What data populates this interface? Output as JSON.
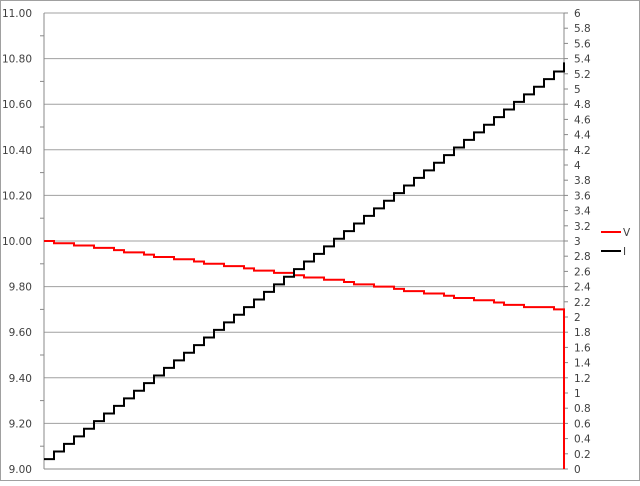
{
  "chart_data": {
    "type": "line",
    "title": "",
    "xlabel": "",
    "ylabel": "",
    "y2label": "",
    "grid": true,
    "legend_position": "right",
    "x": [
      0,
      1,
      2,
      3,
      4,
      5,
      6,
      7,
      8,
      9,
      10,
      11,
      12,
      13,
      14,
      15,
      16,
      17,
      18,
      19,
      20,
      21,
      22,
      23,
      24,
      25,
      26,
      27,
      28,
      29,
      30,
      31,
      32,
      33,
      34,
      35,
      36,
      37,
      38,
      39,
      40,
      41,
      42,
      43,
      44,
      45,
      46,
      47,
      48,
      49,
      50,
      51,
      52
    ],
    "y_left": {
      "min": 9.0,
      "max": 11.0,
      "step": 0.2,
      "decimals": 2
    },
    "y_right": {
      "min": 0,
      "max": 6,
      "step": 0.2
    },
    "series": [
      {
        "name": "V",
        "axis": "left",
        "color": "#ff0000",
        "values": [
          10.0,
          9.99,
          9.99,
          9.98,
          9.98,
          9.97,
          9.97,
          9.96,
          9.95,
          9.95,
          9.94,
          9.93,
          9.93,
          9.92,
          9.92,
          9.91,
          9.9,
          9.9,
          9.89,
          9.89,
          9.88,
          9.87,
          9.87,
          9.86,
          9.86,
          9.85,
          9.84,
          9.84,
          9.83,
          9.83,
          9.82,
          9.81,
          9.81,
          9.8,
          9.8,
          9.79,
          9.78,
          9.78,
          9.77,
          9.77,
          9.76,
          9.75,
          9.75,
          9.74,
          9.74,
          9.73,
          9.72,
          9.72,
          9.71,
          9.71,
          9.71,
          9.7,
          9.0
        ]
      },
      {
        "name": "I",
        "axis": "right",
        "color": "#000000",
        "values": [
          0.13,
          0.23,
          0.33,
          0.43,
          0.53,
          0.63,
          0.73,
          0.83,
          0.93,
          1.03,
          1.13,
          1.23,
          1.33,
          1.43,
          1.53,
          1.63,
          1.73,
          1.83,
          1.93,
          2.03,
          2.13,
          2.23,
          2.33,
          2.43,
          2.53,
          2.63,
          2.73,
          2.83,
          2.93,
          3.03,
          3.13,
          3.23,
          3.33,
          3.43,
          3.53,
          3.63,
          3.73,
          3.83,
          3.93,
          4.03,
          4.13,
          4.23,
          4.33,
          4.43,
          4.53,
          4.63,
          4.73,
          4.83,
          4.93,
          5.03,
          5.13,
          5.23,
          5.35
        ]
      }
    ],
    "gridline_color": "#a0a0a0"
  }
}
